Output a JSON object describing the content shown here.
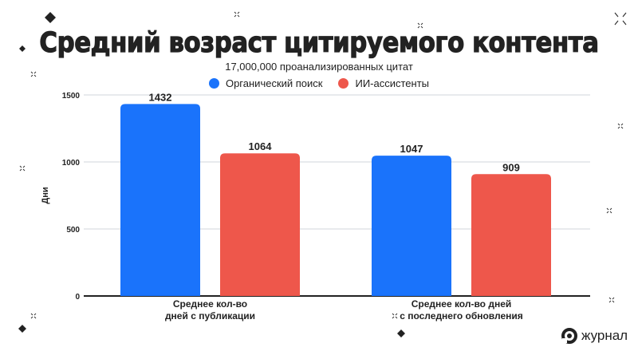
{
  "chart_data": {
    "type": "bar",
    "title": "Средний возраст цитируемого контента",
    "subtitle": "17,000,000 проанализированных цитат",
    "categories": [
      "Среднее кол-во\nдней с публикации",
      "Среднее кол-во дней\nс последнего обновления"
    ],
    "category_lines": [
      [
        "Среднее кол-во",
        "дней с публикации"
      ],
      [
        "Среднее кол-во дней",
        "с последнего обновления"
      ]
    ],
    "series": [
      {
        "name": "Органический поиск",
        "color": "#1a73fb",
        "values": [
          1432,
          1047
        ]
      },
      {
        "name": "ИИ-ассистенты",
        "color": "#ee574b",
        "values": [
          1064,
          909
        ]
      }
    ],
    "xlabel": "",
    "ylabel": "Дни",
    "ylim": [
      0,
      1500
    ],
    "yticks": [
      "0",
      "500",
      "1000",
      "1500"
    ],
    "grid": true,
    "legend_position": "top"
  },
  "logo": {
    "text": "журнал"
  }
}
